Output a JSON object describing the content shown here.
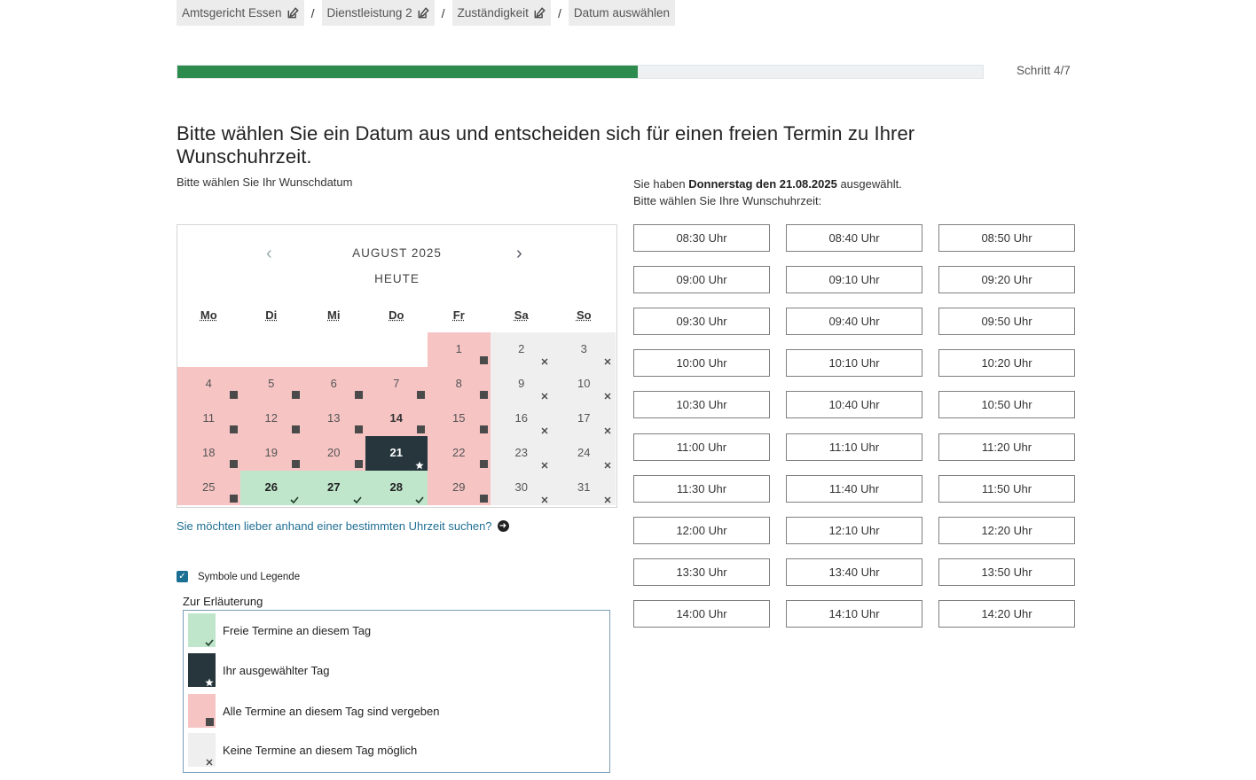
{
  "breadcrumb": [
    {
      "label": "Amtsgericht Essen",
      "editable": true
    },
    {
      "label": "Dienstleistung 2",
      "editable": true
    },
    {
      "label": "Zuständigkeit",
      "editable": true
    },
    {
      "label": "Datum auswählen",
      "editable": false
    }
  ],
  "breadcrumb_separator": "/",
  "progress": {
    "step_label": "Schritt 4/7",
    "current": 4,
    "total": 7
  },
  "heading": "Bitte wählen Sie ein Datum aus und entscheiden sich für einen freien Termin zu Ihrer Wunschuhrzeit.",
  "date_prompt": "Bitte wählen Sie Ihr Wunschdatum",
  "selection": {
    "prefix": "Sie haben",
    "day_bold": "Donnerstag den 21.08.2025",
    "suffix": "ausgewählt.",
    "time_prompt": "Bitte wählen Sie Ihre Wunschuhrzeit:"
  },
  "calendar": {
    "prev": "‹",
    "next": "›",
    "month": "AUGUST 2025",
    "today": "HEUTE",
    "weekdays": [
      "Mo",
      "Di",
      "Mi",
      "Do",
      "Fr",
      "Sa",
      "So"
    ],
    "leading_empty": 4,
    "days": [
      {
        "d": "1",
        "s": "busy"
      },
      {
        "d": "2",
        "s": "none"
      },
      {
        "d": "3",
        "s": "none"
      },
      {
        "d": "4",
        "s": "busy"
      },
      {
        "d": "5",
        "s": "busy"
      },
      {
        "d": "6",
        "s": "busy"
      },
      {
        "d": "7",
        "s": "busy"
      },
      {
        "d": "8",
        "s": "busy"
      },
      {
        "d": "9",
        "s": "none"
      },
      {
        "d": "10",
        "s": "none"
      },
      {
        "d": "11",
        "s": "busy"
      },
      {
        "d": "12",
        "s": "busy"
      },
      {
        "d": "13",
        "s": "busy"
      },
      {
        "d": "14",
        "s": "busy",
        "today": true
      },
      {
        "d": "15",
        "s": "busy"
      },
      {
        "d": "16",
        "s": "none"
      },
      {
        "d": "17",
        "s": "none"
      },
      {
        "d": "18",
        "s": "busy"
      },
      {
        "d": "19",
        "s": "busy"
      },
      {
        "d": "20",
        "s": "busy"
      },
      {
        "d": "21",
        "s": "selected"
      },
      {
        "d": "22",
        "s": "busy"
      },
      {
        "d": "23",
        "s": "none"
      },
      {
        "d": "24",
        "s": "none"
      },
      {
        "d": "25",
        "s": "busy"
      },
      {
        "d": "26",
        "s": "free"
      },
      {
        "d": "27",
        "s": "free"
      },
      {
        "d": "28",
        "s": "free"
      },
      {
        "d": "29",
        "s": "busy"
      },
      {
        "d": "30",
        "s": "none"
      },
      {
        "d": "31",
        "s": "none"
      }
    ]
  },
  "time_search_link": "Sie möchten lieber anhand einer bestimmten Uhrzeit suchen?",
  "legend": {
    "toggle_label": "Symbole und Legende",
    "toggle_checked": true,
    "title": "Zur Erläuterung",
    "items": [
      {
        "type": "free",
        "label": "Freie Termine an diesem Tag"
      },
      {
        "type": "selected",
        "label": "Ihr ausgewählter Tag"
      },
      {
        "type": "busy",
        "label": "Alle Termine an diesem Tag sind vergeben"
      },
      {
        "type": "none",
        "label": "Keine Termine an diesem Tag möglich"
      }
    ]
  },
  "time_slots": [
    "08:30 Uhr",
    "08:40 Uhr",
    "08:50 Uhr",
    "09:00 Uhr",
    "09:10 Uhr",
    "09:20 Uhr",
    "09:30 Uhr",
    "09:40 Uhr",
    "09:50 Uhr",
    "10:00 Uhr",
    "10:10 Uhr",
    "10:20 Uhr",
    "10:30 Uhr",
    "10:40 Uhr",
    "10:50 Uhr",
    "11:00 Uhr",
    "11:10 Uhr",
    "11:20 Uhr",
    "11:30 Uhr",
    "11:40 Uhr",
    "11:50 Uhr",
    "12:00 Uhr",
    "12:10 Uhr",
    "12:20 Uhr",
    "13:30 Uhr",
    "13:40 Uhr",
    "13:50 Uhr",
    "14:00 Uhr",
    "14:10 Uhr",
    "14:20 Uhr"
  ],
  "colors": {
    "progress": "#2e8b4e",
    "free": "#bfe6cb",
    "busy": "#f7c4c4",
    "none": "#efefef",
    "selected": "#27363d",
    "link": "#1f6f94"
  },
  "icons": {
    "edit": "edit-icon",
    "check": "check-icon",
    "star": "star-icon",
    "square": "square-icon",
    "cross": "cross-icon",
    "arrow": "arrow-right-circle-icon"
  }
}
